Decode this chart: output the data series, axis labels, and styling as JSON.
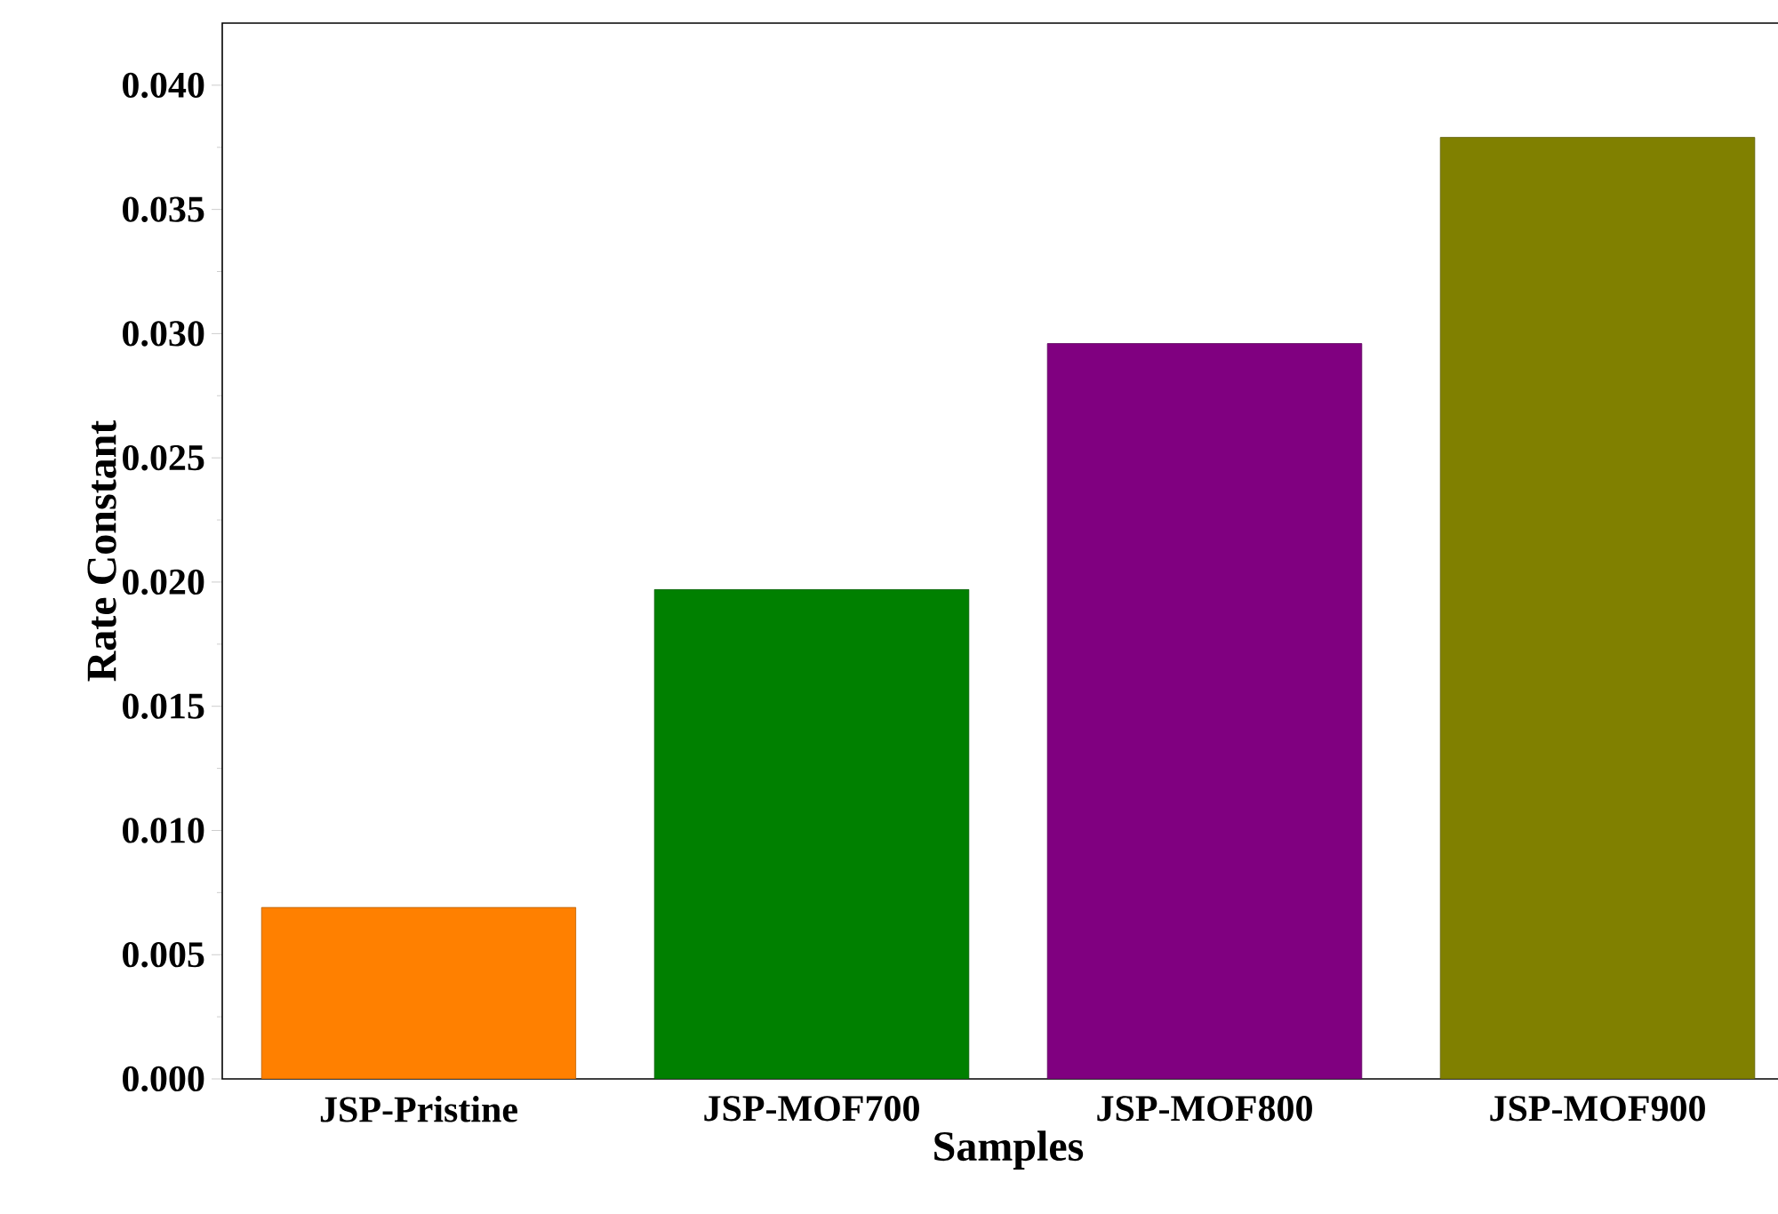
{
  "chart_data": {
    "type": "bar",
    "xlabel": "Samples",
    "ylabel": "Rate Constant",
    "categories": [
      "JSP-Pristine",
      "JSP-MOF700",
      "JSP-MOF800",
      "JSP-MOF900"
    ],
    "values": [
      0.0069,
      0.0197,
      0.0296,
      0.0379
    ],
    "colors": [
      "#ff8000",
      "#008000",
      "#800080",
      "#808000"
    ],
    "ylim": [
      0,
      0.0425
    ],
    "yticks": [
      {
        "value": 0,
        "label": "0.000"
      },
      {
        "value": 0.005,
        "label": "0.005"
      },
      {
        "value": 0.01,
        "label": "0.010"
      },
      {
        "value": 0.015,
        "label": "0.015"
      },
      {
        "value": 0.02,
        "label": "0.020"
      },
      {
        "value": 0.025,
        "label": "0.025"
      },
      {
        "value": 0.03,
        "label": "0.030"
      },
      {
        "value": 0.035,
        "label": "0.035"
      },
      {
        "value": 0.04,
        "label": "0.040"
      }
    ],
    "grid": false
  }
}
